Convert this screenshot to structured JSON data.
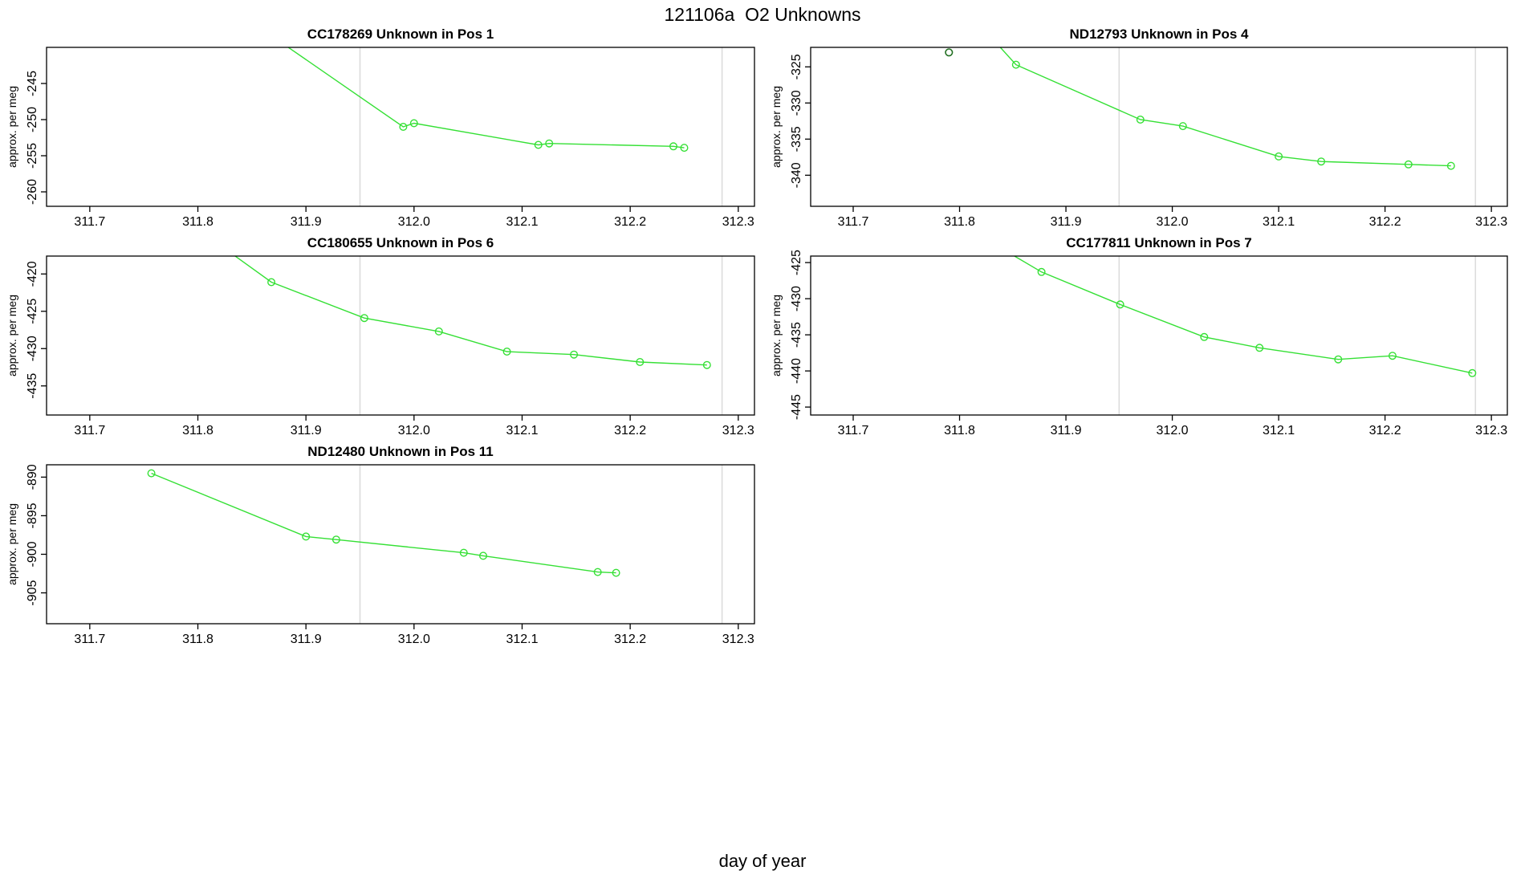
{
  "title": "121106a  O2 Unknowns",
  "xlabel": "day of year",
  "ylabel": "approx. per meg",
  "colors": {
    "line": "#35e035",
    "marker": "#35e035",
    "outlier": "#226f22",
    "vline": "#dcdcdc",
    "axis": "#000000"
  },
  "x_axis": {
    "lim": [
      311.66,
      312.315
    ],
    "tick_values": [
      311.7,
      311.8,
      311.9,
      312.0,
      312.1,
      312.2,
      312.3
    ],
    "tick_labels": [
      "311.7",
      "311.8",
      "311.9",
      "312.0",
      "312.1",
      "312.2",
      "312.3"
    ]
  },
  "vlines": [
    311.95,
    312.285
  ],
  "chart_data": [
    {
      "type": "line",
      "sample": "CC178269",
      "position_label": "Unknown in Pos 1",
      "col": 0,
      "row": 0,
      "ylim": [
        -262.0,
        -240.0
      ],
      "ytick_values": [
        -260,
        -255,
        -250,
        -245
      ],
      "ytick_labels": [
        "-260",
        "-255",
        "-250",
        "-245"
      ],
      "line_start": [
        311.845,
        -236.0
      ],
      "points": [
        [
          311.99,
          -251.0
        ],
        [
          312.0,
          -250.5
        ],
        [
          312.115,
          -253.5
        ],
        [
          312.125,
          -253.3
        ],
        [
          312.24,
          -253.7
        ],
        [
          312.25,
          -253.9
        ]
      ]
    },
    {
      "type": "line",
      "sample": "ND12793",
      "position_label": "Unknown in Pos 4",
      "col": 1,
      "row": 0,
      "ylim": [
        -344.3,
        -322.3
      ],
      "ytick_values": [
        -340,
        -335,
        -330,
        -325
      ],
      "ytick_labels": [
        "-340",
        "-335",
        "-330",
        "-325"
      ],
      "line_start": [
        311.815,
        -318.5
      ],
      "points": [
        [
          311.853,
          -324.7
        ],
        [
          311.97,
          -332.3
        ],
        [
          312.01,
          -333.2
        ],
        [
          312.1,
          -337.4
        ],
        [
          312.14,
          -338.1
        ],
        [
          312.222,
          -338.5
        ],
        [
          312.262,
          -338.7
        ]
      ],
      "outlier_point": [
        311.79,
        -323.0
      ]
    },
    {
      "type": "line",
      "sample": "CC180655",
      "position_label": "Unknown in Pos 6",
      "col": 0,
      "row": 1,
      "ylim": [
        -438.9,
        -417.6
      ],
      "ytick_values": [
        -435,
        -430,
        -425,
        -420
      ],
      "ytick_labels": [
        "-435",
        "-430",
        "-425",
        "-420"
      ],
      "line_start": [
        311.8,
        -414.0
      ],
      "points": [
        [
          311.868,
          -421.1
        ],
        [
          311.954,
          -425.9
        ],
        [
          312.023,
          -427.7
        ],
        [
          312.086,
          -430.4
        ],
        [
          312.148,
          -430.8
        ],
        [
          312.209,
          -431.8
        ],
        [
          312.271,
          -432.2
        ]
      ]
    },
    {
      "type": "line",
      "sample": "CC177811",
      "position_label": "Unknown in Pos 7",
      "col": 1,
      "row": 1,
      "ylim": [
        -446.1,
        -424.1
      ],
      "ytick_values": [
        -445,
        -440,
        -435,
        -430,
        -425
      ],
      "ytick_labels": [
        "-445",
        "-440",
        "-435",
        "-430",
        "-425"
      ],
      "line_start": [
        311.81,
        -420.5
      ],
      "points": [
        [
          311.877,
          -426.3
        ],
        [
          311.951,
          -430.8
        ],
        [
          312.03,
          -435.3
        ],
        [
          312.082,
          -436.8
        ],
        [
          312.156,
          -438.4
        ],
        [
          312.207,
          -437.9
        ],
        [
          312.282,
          -440.3
        ]
      ]
    },
    {
      "type": "line",
      "sample": "ND12480",
      "position_label": "Unknown in Pos 11",
      "col": 0,
      "row": 2,
      "ylim": [
        -909.0,
        -888.4
      ],
      "ytick_values": [
        -905,
        -900,
        -895,
        -890
      ],
      "ytick_labels": [
        "-905",
        "-900",
        "-895",
        "-890"
      ],
      "points": [
        [
          311.757,
          -889.5
        ],
        [
          311.9,
          -897.7
        ],
        [
          311.928,
          -898.1
        ],
        [
          312.046,
          -899.8
        ],
        [
          312.064,
          -900.2
        ],
        [
          312.17,
          -902.3
        ],
        [
          312.187,
          -902.4
        ]
      ]
    }
  ]
}
